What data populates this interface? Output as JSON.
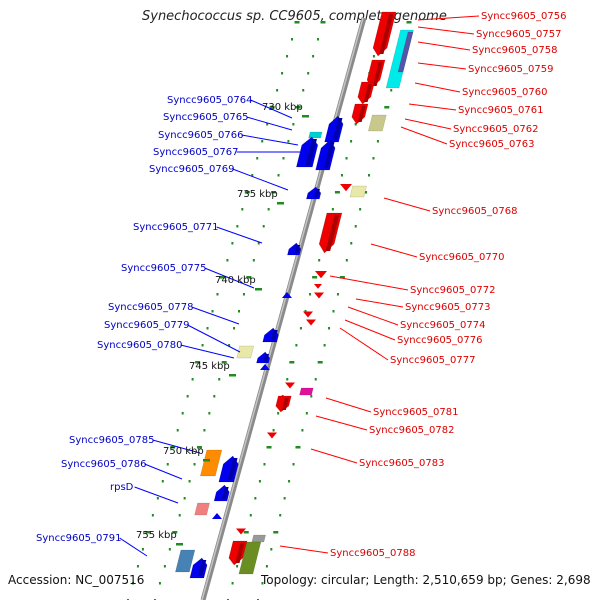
{
  "title": "Synechococcus sp. CC9605, complete genome",
  "footer": {
    "accession": "Accession: NC_007516",
    "topology": "Topology: circular; Length: 2,510,659 bp; Genes: 2,698"
  },
  "colors": {
    "forward_label": "#0000c8",
    "reverse_label": "#dd0000",
    "backbone": "#888888",
    "tick": "#228b22"
  },
  "kbp_marks": [
    "730 kbp",
    "735 kbp",
    "740 kbp",
    "745 kbp",
    "750 kbp",
    "755 kbp"
  ],
  "forward_genes": [
    {
      "name": "Syncc9605_0764"
    },
    {
      "name": "Syncc9605_0765"
    },
    {
      "name": "Syncc9605_0766"
    },
    {
      "name": "Syncc9605_0767"
    },
    {
      "name": "Syncc9605_0769"
    },
    {
      "name": "Syncc9605_0771"
    },
    {
      "name": "Syncc9605_0775"
    },
    {
      "name": "Syncc9605_0778"
    },
    {
      "name": "Syncc9605_0779"
    },
    {
      "name": "Syncc9605_0780"
    },
    {
      "name": "Syncc9605_0785"
    },
    {
      "name": "Syncc9605_0786"
    },
    {
      "name": "rpsD"
    },
    {
      "name": "Syncc9605_0791"
    }
  ],
  "reverse_genes": [
    {
      "name": "Syncc9605_0756"
    },
    {
      "name": "Syncc9605_0757"
    },
    {
      "name": "Syncc9605_0758"
    },
    {
      "name": "Syncc9605_0759"
    },
    {
      "name": "Syncc9605_0760"
    },
    {
      "name": "Syncc9605_0761"
    },
    {
      "name": "Syncc9605_0762"
    },
    {
      "name": "Syncc9605_0763"
    },
    {
      "name": "Syncc9605_0768"
    },
    {
      "name": "Syncc9605_0770"
    },
    {
      "name": "Syncc9605_0772"
    },
    {
      "name": "Syncc9605_0773"
    },
    {
      "name": "Syncc9605_0774"
    },
    {
      "name": "Syncc9605_0776"
    },
    {
      "name": "Syncc9605_0777"
    },
    {
      "name": "Syncc9605_0781"
    },
    {
      "name": "Syncc9605_0782"
    },
    {
      "name": "Syncc9605_0783"
    },
    {
      "name": "Syncc9605_0788"
    }
  ]
}
